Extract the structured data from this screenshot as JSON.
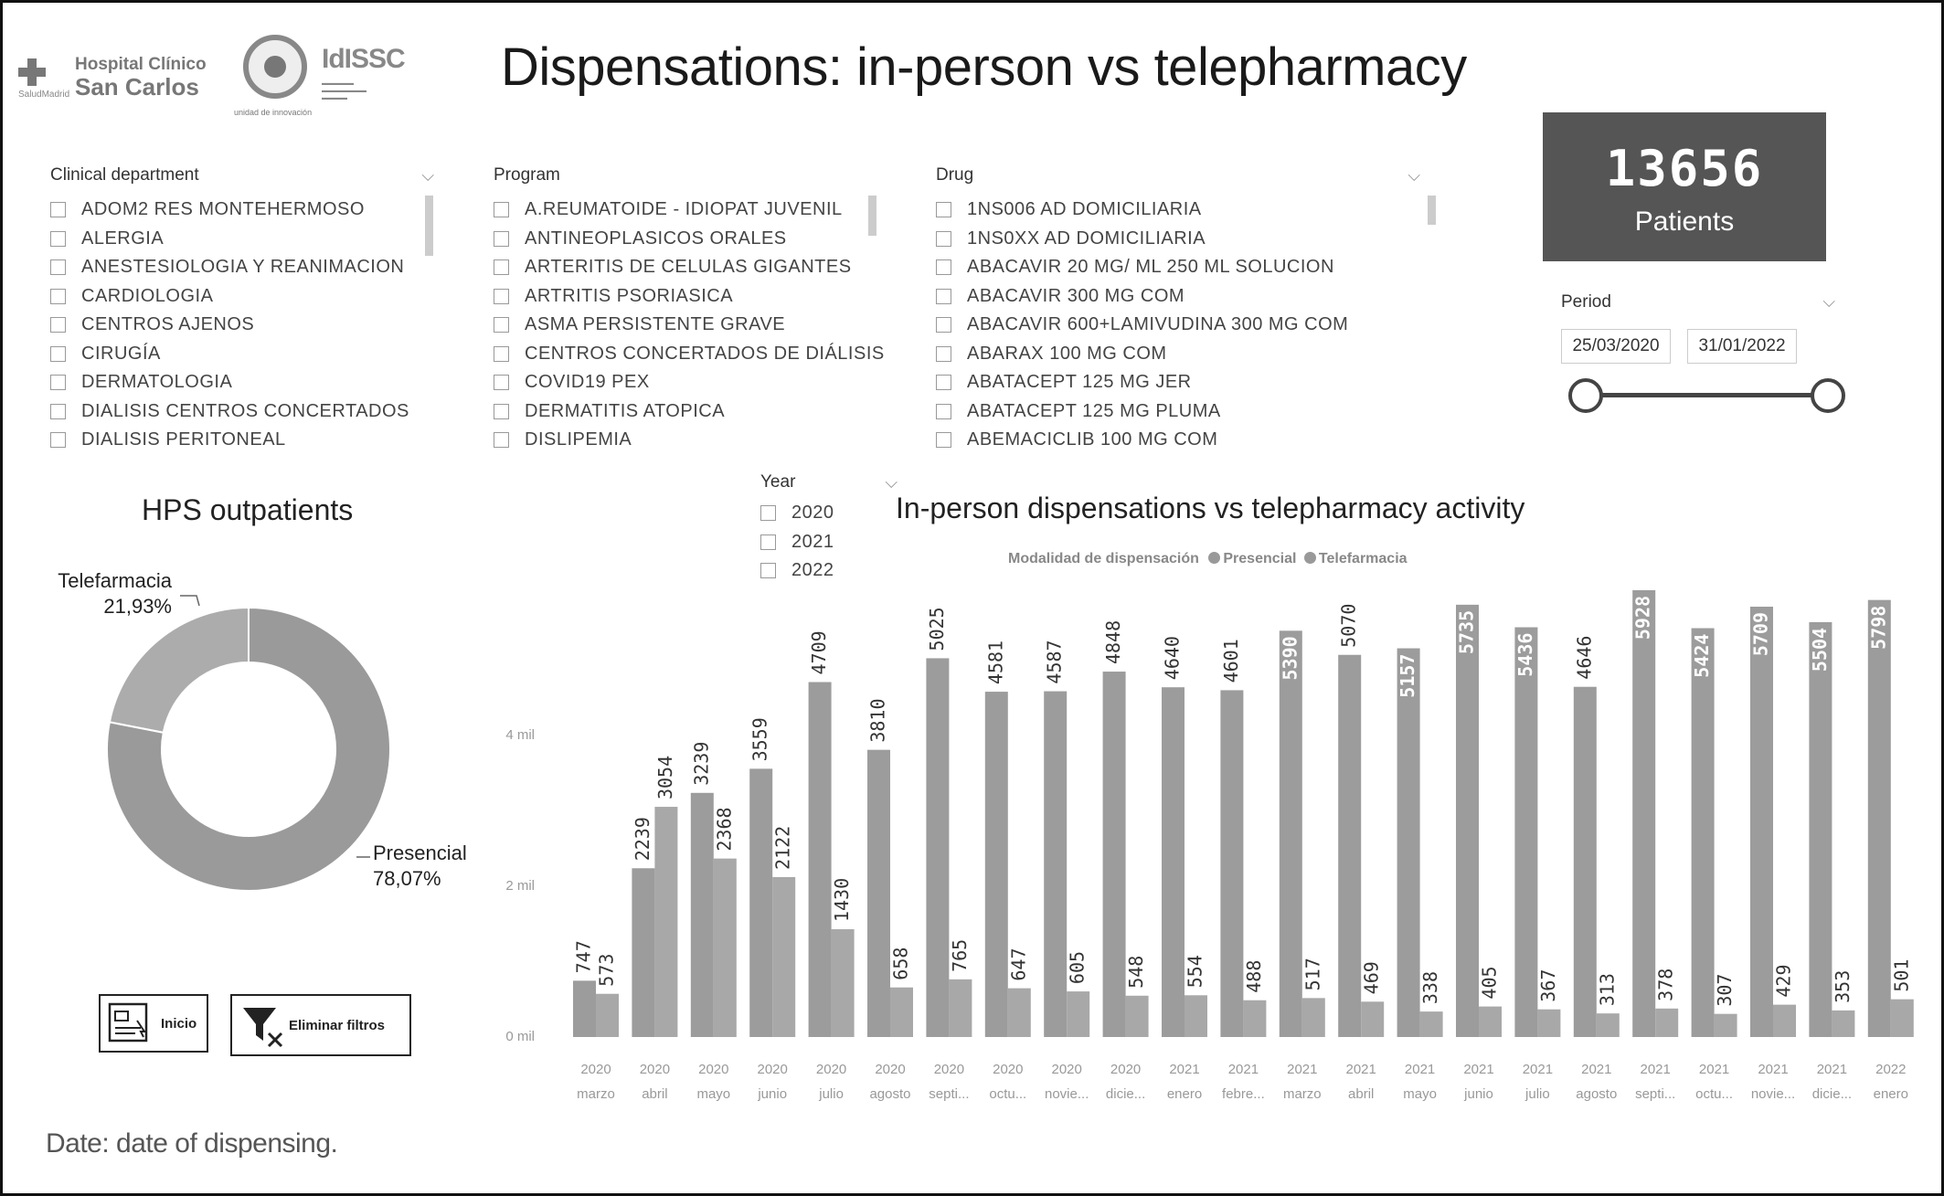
{
  "title": "Dispensations: in-person vs telepharmacy",
  "logos": {
    "hcsc_line1": "Hospital Clínico",
    "hcsc_line2": "San Carlos",
    "hcsc_small": "SaludMadrid",
    "unit_caption": "unidad de innovación",
    "idissc": "IdISSC"
  },
  "slicers": {
    "department": {
      "title": "Clinical department",
      "items": [
        "ADOM2 RES MONTEHERMOSO",
        "ALERGIA",
        "ANESTESIOLOGIA Y REANIMACION",
        "CARDIOLOGIA",
        "CENTROS AJENOS",
        "CIRUGÍA",
        "DERMATOLOGIA",
        "DIALISIS CENTROS CONCERTADOS",
        "DIALISIS PERITONEAL"
      ]
    },
    "program": {
      "title": "Program",
      "items": [
        "A.REUMATOIDE - IDIOPAT JUVENIL",
        "ANTINEOPLASICOS ORALES",
        "ARTERITIS DE CELULAS GIGANTES",
        "ARTRITIS PSORIASICA",
        "ASMA PERSISTENTE GRAVE",
        "CENTROS CONCERTADOS DE DIÁLISIS",
        "COVID19 PEX",
        "DERMATITIS ATOPICA",
        "DISLIPEMIA"
      ]
    },
    "drug": {
      "title": "Drug",
      "items": [
        "1NS006 AD DOMICILIARIA",
        "1NS0XX AD DOMICILIARIA",
        "ABACAVIR 20 MG/ ML 250 ML SOLUCION",
        "ABACAVIR 300 MG COM",
        "ABACAVIR 600+LAMIVUDINA 300 MG COM",
        "ABARAX 100 MG COM",
        "ABATACEPT 125 MG JER",
        "ABATACEPT 125 MG PLUMA",
        "ABEMACICLIB 100 MG COM"
      ]
    },
    "year": {
      "title": "Year",
      "items": [
        "2020",
        "2021",
        "2022"
      ]
    }
  },
  "kpi": {
    "value": "13656",
    "label": "Patients"
  },
  "period": {
    "title": "Period",
    "start": "25/03/2020",
    "end": "31/01/2022",
    "start_fraction": 0,
    "end_fraction": 1
  },
  "donut": {
    "title": "HPS outpatients",
    "slices": [
      {
        "name": "Presencial",
        "pct_label": "78,07%",
        "value": 78.07,
        "color": "#9a9a9a"
      },
      {
        "name": "Telefarmacia",
        "pct_label": "21,93%",
        "value": 21.93,
        "color": "#acacac"
      }
    ]
  },
  "buttons": {
    "home": "Inicio",
    "clear": "Eliminar filtros"
  },
  "chart_title": "In-person dispensations vs telepharmacy activity",
  "chart_data": {
    "type": "bar",
    "title": "In-person dispensations vs telepharmacy activity",
    "legend_title": "Modalidad de dispensación",
    "legend_position": "top",
    "categories": [
      [
        "2020",
        "marzo"
      ],
      [
        "2020",
        "abril"
      ],
      [
        "2020",
        "mayo"
      ],
      [
        "2020",
        "junio"
      ],
      [
        "2020",
        "julio"
      ],
      [
        "2020",
        "agosto"
      ],
      [
        "2020",
        "septi..."
      ],
      [
        "2020",
        "octu..."
      ],
      [
        "2020",
        "novie..."
      ],
      [
        "2020",
        "dicie..."
      ],
      [
        "2021",
        "enero"
      ],
      [
        "2021",
        "febre..."
      ],
      [
        "2021",
        "marzo"
      ],
      [
        "2021",
        "abril"
      ],
      [
        "2021",
        "mayo"
      ],
      [
        "2021",
        "junio"
      ],
      [
        "2021",
        "julio"
      ],
      [
        "2021",
        "agosto"
      ],
      [
        "2021",
        "septi..."
      ],
      [
        "2021",
        "octu..."
      ],
      [
        "2021",
        "novie..."
      ],
      [
        "2021",
        "dicie..."
      ],
      [
        "2022",
        "enero"
      ]
    ],
    "series": [
      {
        "name": "Presencial",
        "color": "#9c9c9c",
        "values": [
          747,
          2239,
          3239,
          3559,
          4709,
          3810,
          5025,
          4581,
          4587,
          4848,
          4640,
          4601,
          5390,
          5070,
          5157,
          5735,
          5436,
          4646,
          5928,
          5424,
          5709,
          5504,
          5798
        ]
      },
      {
        "name": "Telefarmacia",
        "color": "#a8a8a8",
        "values": [
          573,
          3054,
          2368,
          2122,
          1430,
          658,
          765,
          647,
          605,
          548,
          554,
          488,
          517,
          469,
          338,
          405,
          367,
          313,
          378,
          307,
          429,
          353,
          501
        ]
      }
    ],
    "ylim": [
      0,
      6000
    ],
    "yticks": [
      {
        "value": 0,
        "label": "0 mil"
      },
      {
        "value": 2000,
        "label": "2 mil"
      },
      {
        "value": 4000,
        "label": "4 mil"
      }
    ],
    "inside_label_threshold": 5100
  },
  "footnote": "Date: date of dispensing."
}
